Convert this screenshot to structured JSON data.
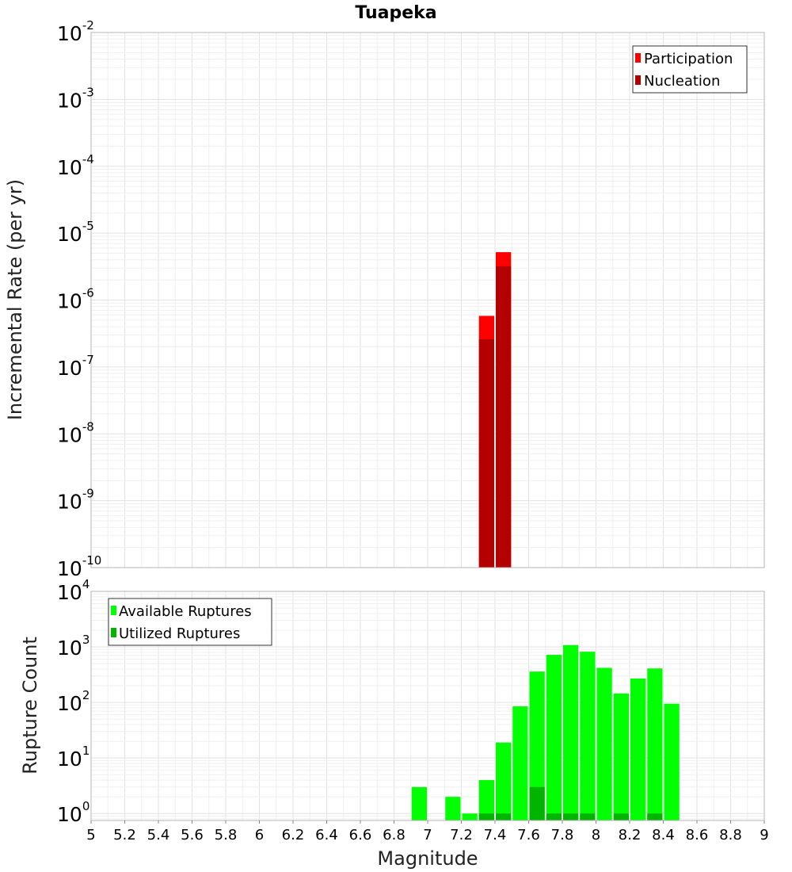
{
  "chart_data": [
    {
      "type": "bar",
      "title": "Tuapeka",
      "ylabel": "Incremental Rate (per yr)",
      "xlabel": "",
      "xlim": [
        5,
        9
      ],
      "ylim": [
        1e-10,
        0.01
      ],
      "yscale": "log",
      "bin_width": 0.1,
      "y_ticks": [
        {
          "base": "10",
          "exp": "-10"
        },
        {
          "base": "10",
          "exp": "-9"
        },
        {
          "base": "10",
          "exp": "-8"
        },
        {
          "base": "10",
          "exp": "-7"
        },
        {
          "base": "10",
          "exp": "-6"
        },
        {
          "base": "10",
          "exp": "-5"
        },
        {
          "base": "10",
          "exp": "-4"
        },
        {
          "base": "10",
          "exp": "-3"
        },
        {
          "base": "10",
          "exp": "-2"
        }
      ],
      "legend_position": "top-right",
      "series": [
        {
          "name": "Participation",
          "color": "#ff0000",
          "x": [
            7.35,
            7.45
          ],
          "values": [
            5.8e-07,
            5.2e-06
          ]
        },
        {
          "name": "Nucleation",
          "color": "#b30000",
          "x": [
            7.35,
            7.45
          ],
          "values": [
            2.6e-07,
            3.2e-06
          ]
        }
      ]
    },
    {
      "type": "bar",
      "title": "",
      "ylabel": "Rupture Count",
      "xlabel": "Magnitude",
      "xlim": [
        5,
        9
      ],
      "ylim": [
        0.75,
        10000
      ],
      "yscale": "log",
      "bin_width": 0.1,
      "y_ticks": [
        {
          "base": "10",
          "exp": "0"
        },
        {
          "base": "10",
          "exp": "1"
        },
        {
          "base": "10",
          "exp": "2"
        },
        {
          "base": "10",
          "exp": "3"
        },
        {
          "base": "10",
          "exp": "4"
        }
      ],
      "x_ticks": [
        "5",
        "5.2",
        "5.4",
        "5.6",
        "5.8",
        "6",
        "6.2",
        "6.4",
        "6.6",
        "6.8",
        "7",
        "7.2",
        "7.4",
        "7.6",
        "7.8",
        "8",
        "8.2",
        "8.4",
        "8.6",
        "8.8",
        "9"
      ],
      "legend_position": "top-left",
      "series": [
        {
          "name": "Available Ruptures",
          "color": "#00ff00",
          "x": [
            6.95,
            7.15,
            7.25,
            7.35,
            7.45,
            7.55,
            7.65,
            7.75,
            7.85,
            7.95,
            8.05,
            8.15,
            8.25,
            8.35,
            8.45
          ],
          "values": [
            3,
            2,
            1,
            4,
            19,
            85,
            360,
            720,
            1080,
            820,
            420,
            145,
            270,
            410,
            95
          ]
        },
        {
          "name": "Utilized Ruptures",
          "color": "#00b400",
          "x": [
            7.35,
            7.45,
            7.65,
            7.75,
            7.85,
            7.95,
            8.15,
            8.35
          ],
          "values": [
            1,
            1,
            3,
            1,
            1,
            1,
            1,
            1
          ]
        }
      ]
    }
  ]
}
